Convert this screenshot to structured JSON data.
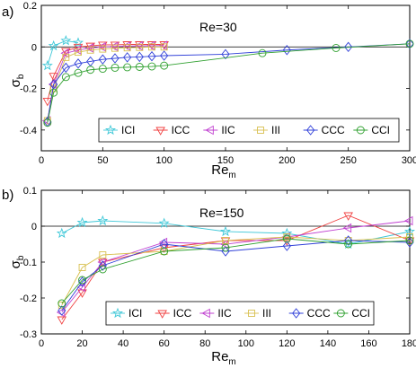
{
  "chart_data": [
    {
      "type": "line",
      "panel_label": "a)",
      "annotation": "Re=30",
      "xlabel": "Re",
      "xlabel_sub": "m",
      "ylabel": "σ",
      "ylabel_sub": "b",
      "xlim": [
        0,
        300
      ],
      "ylim": [
        -0.5,
        0.2
      ],
      "xticks": [
        "0",
        "50",
        "100",
        "150",
        "200",
        "250",
        "300"
      ],
      "yticks": [
        "0.2",
        "0",
        "-0.2",
        "-0.4"
      ],
      "xtick_values": [
        0,
        50,
        100,
        150,
        200,
        250,
        300
      ],
      "ytick_values": [
        0.2,
        0,
        -0.2,
        -0.4
      ],
      "zero_line": true,
      "grid": false,
      "legend_position": "bottom-center",
      "series": [
        {
          "name": "ICI",
          "color": "#40c8d8",
          "marker": "star",
          "x": [
            5,
            10,
            20,
            30
          ],
          "y": [
            -0.09,
            0.005,
            0.03,
            0.02
          ]
        },
        {
          "name": "ICC",
          "color": "#f04040",
          "marker": "triangle-down",
          "x": [
            5,
            10,
            20,
            30,
            40,
            50,
            60,
            70,
            80,
            90,
            100
          ],
          "y": [
            -0.26,
            -0.14,
            -0.02,
            0.0,
            0.005,
            0.01,
            0.01,
            0.012,
            0.012,
            0.012,
            0.012
          ]
        },
        {
          "name": "IIC",
          "color": "#c040d0",
          "marker": "triangle-left",
          "x": [
            5,
            10,
            20,
            30,
            40,
            50,
            60,
            70,
            80,
            90,
            100
          ],
          "y": [
            -0.355,
            -0.18,
            -0.03,
            -0.015,
            -0.005,
            0.0,
            0.002,
            0.004,
            0.005,
            0.006,
            0.007
          ]
        },
        {
          "name": "III",
          "color": "#d8c050",
          "marker": "square",
          "x": [
            5,
            10,
            20,
            30,
            40,
            50,
            60,
            70,
            80,
            90,
            100
          ],
          "y": [
            -0.355,
            -0.2,
            -0.05,
            -0.025,
            -0.015,
            -0.01,
            -0.006,
            -0.004,
            -0.002,
            0.0,
            0.0
          ]
        },
        {
          "name": "CCC",
          "color": "#3040d8",
          "marker": "diamond",
          "x": [
            5,
            10,
            20,
            30,
            40,
            50,
            60,
            70,
            80,
            90,
            100,
            150,
            200,
            250,
            300
          ],
          "y": [
            -0.36,
            -0.18,
            -0.1,
            -0.08,
            -0.07,
            -0.06,
            -0.055,
            -0.05,
            -0.048,
            -0.045,
            -0.042,
            -0.035,
            -0.015,
            0.0,
            0.015
          ]
        },
        {
          "name": "CCI",
          "color": "#30a030",
          "marker": "circle",
          "x": [
            5,
            10,
            20,
            30,
            40,
            50,
            60,
            70,
            80,
            90,
            100,
            180,
            240,
            300
          ],
          "y": [
            -0.365,
            -0.22,
            -0.145,
            -0.125,
            -0.11,
            -0.105,
            -0.1,
            -0.098,
            -0.096,
            -0.094,
            -0.09,
            -0.03,
            -0.005,
            0.015
          ]
        }
      ]
    },
    {
      "type": "line",
      "panel_label": "b)",
      "annotation": "Re=150",
      "xlabel": "Re",
      "xlabel_sub": "m",
      "ylabel": "σ",
      "ylabel_sub": "b",
      "xlim": [
        0,
        180
      ],
      "ylim": [
        -0.3,
        0.1
      ],
      "xticks": [
        "0",
        "20",
        "40",
        "60",
        "80",
        "100",
        "120",
        "140",
        "160",
        "180"
      ],
      "yticks": [
        "0.1",
        "0",
        "-0.1",
        "-0.2",
        "-0.3"
      ],
      "xtick_values": [
        0,
        20,
        40,
        60,
        80,
        100,
        120,
        140,
        160,
        180
      ],
      "ytick_values": [
        0.1,
        0,
        -0.1,
        -0.2,
        -0.3
      ],
      "zero_line": true,
      "grid": false,
      "legend_position": "bottom-center",
      "series": [
        {
          "name": "ICI",
          "color": "#40c8d8",
          "marker": "star",
          "x": [
            10,
            20,
            30,
            60,
            90,
            120,
            150,
            180
          ],
          "y": [
            -0.02,
            0.01,
            0.015,
            0.008,
            -0.015,
            -0.02,
            -0.05,
            -0.015
          ]
        },
        {
          "name": "ICC",
          "color": "#f04040",
          "marker": "triangle-down",
          "x": [
            10,
            20,
            30,
            60,
            90,
            120,
            150,
            180
          ],
          "y": [
            -0.26,
            -0.185,
            -0.1,
            -0.06,
            -0.04,
            -0.04,
            0.03,
            -0.04
          ]
        },
        {
          "name": "IIC",
          "color": "#c040d0",
          "marker": "triangle-left",
          "x": [
            10,
            20,
            30,
            60,
            90,
            120,
            150,
            180
          ],
          "y": [
            -0.24,
            -0.17,
            -0.1,
            -0.045,
            -0.05,
            -0.03,
            -0.005,
            0.015
          ]
        },
        {
          "name": "III",
          "color": "#d8c050",
          "marker": "square",
          "x": [
            10,
            20,
            30,
            60,
            90,
            120,
            150,
            180
          ],
          "y": [
            -0.22,
            -0.115,
            -0.08,
            -0.07,
            -0.04,
            -0.03,
            -0.04,
            -0.03
          ]
        },
        {
          "name": "CCC",
          "color": "#3040d8",
          "marker": "diamond",
          "x": [
            10,
            20,
            30,
            60,
            90,
            120,
            150,
            180
          ],
          "y": [
            -0.235,
            -0.155,
            -0.11,
            -0.05,
            -0.07,
            -0.055,
            -0.04,
            -0.045
          ]
        },
        {
          "name": "CCI",
          "color": "#30a030",
          "marker": "circle",
          "x": [
            10,
            20,
            30,
            60,
            90,
            120,
            150,
            180
          ],
          "y": [
            -0.215,
            -0.15,
            -0.12,
            -0.07,
            -0.06,
            -0.035,
            -0.05,
            -0.04
          ]
        }
      ]
    }
  ]
}
